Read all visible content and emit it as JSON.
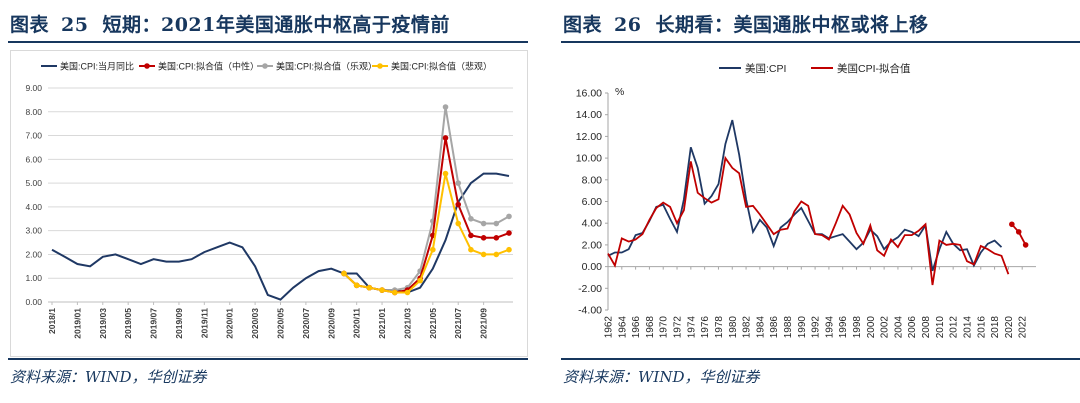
{
  "left": {
    "fig_label": "图表",
    "fig_num": "25",
    "title": "短期：2021年美国通胀中枢高于疫情前",
    "source": "资料来源：WIND，华创证券",
    "chart_data": {
      "type": "line",
      "title": "",
      "xlabel": "",
      "ylabel": "",
      "ylim": [
        0,
        9
      ],
      "y_ticks": [
        "0.00",
        "1.00",
        "2.00",
        "3.00",
        "4.00",
        "5.00",
        "6.00",
        "7.00",
        "8.00",
        "9.00"
      ],
      "x_tick_labels": [
        "2018/1",
        "2019/01",
        "2019/03",
        "2019/05",
        "2019/07",
        "2019/09",
        "2019/11",
        "2020/01",
        "2020/03",
        "2020/05",
        "2020/07",
        "2020/09",
        "2020/11",
        "2021/01",
        "2021/03",
        "2021/05",
        "2021/07",
        "2021/09"
      ],
      "grid": true,
      "legend_position": "top",
      "series": [
        {
          "name": "美国:CPI:当月同比",
          "color": "#1f3864",
          "marker": "none",
          "x": [
            0,
            1,
            2,
            3,
            4,
            5,
            6,
            7,
            8,
            9,
            10,
            11,
            12,
            13,
            14,
            15,
            16,
            17,
            18,
            19,
            20,
            21,
            22,
            23,
            24,
            25,
            26,
            27,
            28,
            29,
            30,
            31,
            32,
            33,
            34,
            35,
            36
          ],
          "y": [
            2.2,
            1.9,
            1.6,
            1.5,
            1.9,
            2.0,
            1.8,
            1.6,
            1.8,
            1.7,
            1.7,
            1.8,
            2.1,
            2.3,
            2.5,
            2.3,
            1.5,
            0.3,
            0.1,
            0.6,
            1.0,
            1.3,
            1.4,
            1.2,
            1.2,
            0.6,
            0.5,
            0.5,
            0.4,
            0.6,
            1.4,
            2.6,
            4.2,
            5.0,
            5.4,
            5.4,
            5.3
          ]
        },
        {
          "name": "美国:CPI:拟合值（中性）",
          "color": "#c00000",
          "marker": "circle",
          "x": [
            23,
            24,
            25,
            26,
            27,
            28,
            29,
            30,
            31,
            32,
            33,
            34,
            35,
            36
          ],
          "y": [
            1.2,
            0.7,
            0.6,
            0.5,
            0.4,
            0.5,
            1.0,
            2.8,
            6.9,
            4.1,
            2.8,
            2.7,
            2.7,
            2.9
          ]
        },
        {
          "name": "美国:CPI:拟合值（乐观）",
          "color": "#a6a6a6",
          "marker": "circle",
          "x": [
            23,
            24,
            25,
            26,
            27,
            28,
            29,
            30,
            31,
            32,
            33,
            34,
            35,
            36
          ],
          "y": [
            1.2,
            0.7,
            0.6,
            0.5,
            0.5,
            0.6,
            1.3,
            3.4,
            8.2,
            5.0,
            3.5,
            3.3,
            3.3,
            3.6
          ]
        },
        {
          "name": "美国:CPI:拟合值（悲观）",
          "color": "#ffc000",
          "marker": "circle",
          "x": [
            23,
            24,
            25,
            26,
            27,
            28,
            29,
            30,
            31,
            32,
            33,
            34,
            35,
            36
          ],
          "y": [
            1.2,
            0.7,
            0.6,
            0.5,
            0.4,
            0.4,
            0.9,
            2.2,
            5.4,
            3.3,
            2.2,
            2.0,
            2.0,
            2.2
          ]
        }
      ]
    }
  },
  "right": {
    "fig_label": "图表",
    "fig_num": "26",
    "title": "长期看：美国通胀中枢或将上移",
    "source": "资料来源：WIND，华创证券",
    "chart_data": {
      "type": "line",
      "title": "",
      "xlabel": "",
      "ylabel": "%",
      "ylim": [
        -4,
        16
      ],
      "y_ticks": [
        "-4.00",
        "-2.00",
        "0.00",
        "2.00",
        "4.00",
        "6.00",
        "8.00",
        "10.00",
        "12.00",
        "14.00",
        "16.00"
      ],
      "x_tick_labels": [
        "1962",
        "1964",
        "1966",
        "1968",
        "1970",
        "1972",
        "1974",
        "1976",
        "1978",
        "1980",
        "1982",
        "1984",
        "1986",
        "1988",
        "1990",
        "1992",
        "1994",
        "1996",
        "1998",
        "2000",
        "2002",
        "2004",
        "2006",
        "2008",
        "2010",
        "2012",
        "2014",
        "2016",
        "2018",
        "2020",
        "2022"
      ],
      "grid": false,
      "legend_position": "top",
      "series": [
        {
          "name": "美国:CPI",
          "color": "#1f3864",
          "marker": "none",
          "x": [
            1962,
            1963,
            1964,
            1965,
            1966,
            1967,
            1968,
            1969,
            1970,
            1971,
            1972,
            1973,
            1974,
            1975,
            1976,
            1977,
            1978,
            1979,
            1980,
            1981,
            1982,
            1983,
            1984,
            1985,
            1986,
            1987,
            1988,
            1989,
            1990,
            1991,
            1992,
            1993,
            1994,
            1995,
            1996,
            1997,
            1998,
            1999,
            2000,
            2001,
            2002,
            2003,
            2004,
            2005,
            2006,
            2007,
            2008,
            2009,
            2010,
            2011,
            2012,
            2013,
            2014,
            2015,
            2016,
            2017,
            2018,
            2019
          ],
          "y": [
            1.0,
            1.3,
            1.3,
            1.6,
            2.9,
            3.1,
            4.2,
            5.5,
            5.7,
            4.4,
            3.2,
            6.2,
            11.0,
            9.1,
            5.8,
            6.5,
            7.6,
            11.3,
            13.5,
            10.3,
            6.2,
            3.2,
            4.3,
            3.6,
            1.9,
            3.6,
            4.1,
            4.8,
            5.4,
            4.2,
            3.0,
            3.0,
            2.6,
            2.8,
            3.0,
            2.3,
            1.6,
            2.2,
            3.4,
            2.8,
            1.6,
            2.3,
            2.7,
            3.4,
            3.2,
            2.8,
            3.8,
            -0.4,
            1.6,
            3.2,
            2.1,
            1.5,
            1.6,
            0.1,
            1.3,
            2.1,
            2.4,
            1.8
          ]
        },
        {
          "name": "美国CPI-拟合值",
          "color": "#c00000",
          "marker": "none",
          "x": [
            1962,
            1963,
            1964,
            1965,
            1966,
            1967,
            1968,
            1969,
            1970,
            1971,
            1972,
            1973,
            1974,
            1975,
            1976,
            1977,
            1978,
            1979,
            1980,
            1981,
            1982,
            1983,
            1984,
            1985,
            1986,
            1987,
            1988,
            1989,
            1990,
            1991,
            1992,
            1993,
            1994,
            1995,
            1996,
            1997,
            1998,
            1999,
            2000,
            2001,
            2002,
            2003,
            2004,
            2005,
            2006,
            2007,
            2008,
            2009,
            2010,
            2011,
            2012,
            2013,
            2014,
            2015,
            2016,
            2017,
            2018,
            2019,
            2020
          ],
          "y": [
            1.2,
            0.1,
            2.6,
            2.3,
            2.5,
            3.0,
            4.3,
            5.4,
            5.9,
            5.5,
            4.0,
            5.2,
            9.7,
            6.8,
            6.3,
            5.9,
            6.2,
            10.0,
            9.1,
            8.6,
            5.5,
            5.6,
            4.8,
            3.9,
            3.0,
            3.4,
            3.5,
            5.1,
            6.0,
            5.6,
            3.0,
            2.9,
            2.5,
            4.0,
            5.6,
            4.8,
            3.1,
            2.1,
            3.8,
            1.5,
            1.0,
            2.5,
            1.8,
            2.9,
            2.9,
            3.3,
            3.9,
            -1.7,
            2.4,
            2.0,
            2.1,
            2.0,
            0.5,
            0.2,
            1.9,
            1.6,
            1.2,
            1.0,
            -0.7
          ]
        },
        {
          "name": "美国CPI-拟合值",
          "color": "#c00000",
          "marker": "circle",
          "x": [
            2020.5,
            2021.5,
            2022.5
          ],
          "y": [
            3.9,
            3.2,
            2.0
          ]
        }
      ]
    }
  }
}
